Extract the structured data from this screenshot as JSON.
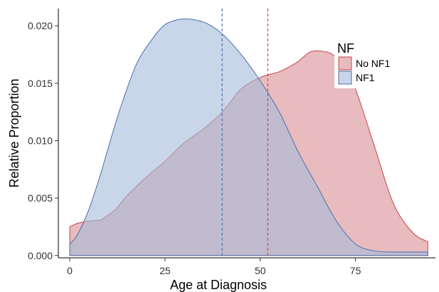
{
  "chart_data": {
    "type": "area",
    "title": "",
    "xlabel": "Age at Diagnosis",
    "ylabel": "Relative Proportion",
    "xlim": [
      -3,
      96
    ],
    "ylim": [
      -0.0002,
      0.0215
    ],
    "x_ticks": [
      0,
      25,
      50,
      75
    ],
    "x_tick_labels": [
      "0",
      "25",
      "50",
      "75"
    ],
    "y_ticks": [
      0.0,
      0.005,
      0.01,
      0.015,
      0.02
    ],
    "y_tick_labels": [
      "0.000",
      "0.005",
      "0.010",
      "0.015",
      "0.020"
    ],
    "grid": false,
    "legend": {
      "title": "NF",
      "position": "top-right",
      "entries": [
        "No NF1",
        "NF1"
      ]
    },
    "series": [
      {
        "name": "No NF1",
        "color": "#c8474d",
        "fill": "#d98e93",
        "median_line": 52,
        "x": [
          0,
          2,
          5,
          8,
          10,
          12,
          15,
          20,
          25,
          30,
          35,
          40,
          45,
          50,
          55,
          58,
          60,
          63,
          66,
          69,
          72,
          75,
          80,
          85,
          90,
          94
        ],
        "y": [
          0.0025,
          0.0028,
          0.003,
          0.0031,
          0.0035,
          0.004,
          0.0052,
          0.0068,
          0.0082,
          0.0098,
          0.011,
          0.0125,
          0.0145,
          0.0155,
          0.016,
          0.0165,
          0.0169,
          0.0177,
          0.0178,
          0.0175,
          0.0165,
          0.0145,
          0.0095,
          0.0045,
          0.002,
          0.0012
        ]
      },
      {
        "name": "NF1",
        "color": "#4a6fad",
        "fill": "#a5bbdb",
        "median_line": 40,
        "x": [
          0,
          2,
          5,
          8,
          12,
          15,
          18,
          22,
          25,
          28,
          30,
          33,
          36,
          40,
          45,
          50,
          55,
          60,
          65,
          70,
          75,
          80,
          85,
          90,
          94
        ],
        "y": [
          0.001,
          0.0018,
          0.004,
          0.007,
          0.0115,
          0.0145,
          0.017,
          0.019,
          0.0201,
          0.0205,
          0.0206,
          0.0205,
          0.0202,
          0.0193,
          0.0175,
          0.0152,
          0.0125,
          0.009,
          0.006,
          0.003,
          0.001,
          0.0004,
          0.0003,
          0.0003,
          0.0003
        ]
      }
    ]
  }
}
